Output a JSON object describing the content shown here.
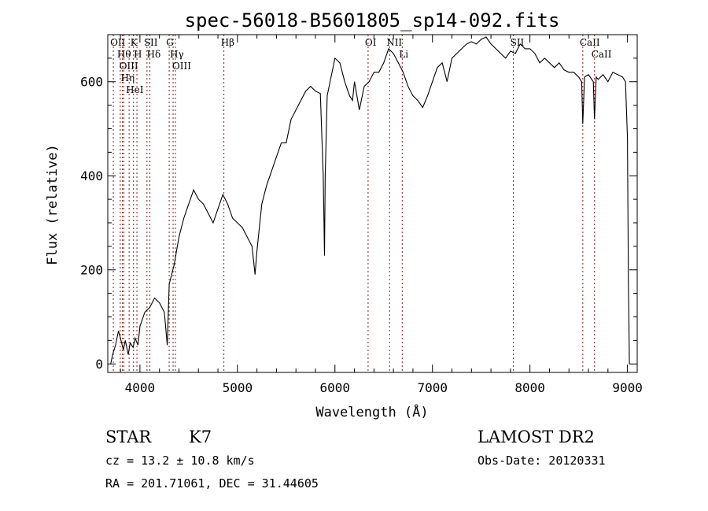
{
  "chart_data": {
    "type": "line",
    "title": "spec-56018-B5601805_sp14-092.fits",
    "xlabel": "Wavelength (Å)",
    "ylabel": "Flux (relative)",
    "xlim": [
      3670,
      9100
    ],
    "ylim": [
      -18,
      700
    ],
    "xticks": [
      4000,
      5000,
      6000,
      7000,
      8000,
      9000
    ],
    "yticks": [
      0,
      200,
      400,
      600
    ],
    "grid": false,
    "series": [
      {
        "name": "spectrum",
        "x": [
          3700,
          3720,
          3750,
          3780,
          3800,
          3830,
          3850,
          3880,
          3900,
          3930,
          3950,
          3980,
          4000,
          4050,
          4100,
          4150,
          4200,
          4250,
          4280,
          4300,
          4350,
          4400,
          4450,
          4500,
          4550,
          4600,
          4650,
          4700,
          4750,
          4800,
          4850,
          4900,
          4950,
          5000,
          5050,
          5100,
          5150,
          5180,
          5200,
          5250,
          5300,
          5350,
          5400,
          5450,
          5500,
          5550,
          5600,
          5650,
          5700,
          5750,
          5800,
          5850,
          5880,
          5893,
          5900,
          5920,
          5950,
          6000,
          6050,
          6100,
          6150,
          6180,
          6200,
          6250,
          6300,
          6350,
          6400,
          6450,
          6500,
          6550,
          6600,
          6650,
          6700,
          6750,
          6800,
          6850,
          6900,
          6950,
          7000,
          7050,
          7100,
          7150,
          7200,
          7250,
          7300,
          7350,
          7400,
          7450,
          7500,
          7550,
          7600,
          7650,
          7700,
          7750,
          7800,
          7850,
          7900,
          7950,
          8000,
          8050,
          8100,
          8150,
          8200,
          8250,
          8300,
          8350,
          8400,
          8450,
          8500,
          8530,
          8542,
          8560,
          8600,
          8650,
          8662,
          8680,
          8700,
          8750,
          8800,
          8850,
          8900,
          8950,
          8980,
          9000,
          9010,
          9020
        ],
        "y": [
          0,
          20,
          40,
          70,
          55,
          30,
          50,
          20,
          45,
          35,
          55,
          40,
          80,
          110,
          120,
          140,
          130,
          110,
          40,
          170,
          210,
          270,
          310,
          340,
          370,
          350,
          340,
          320,
          300,
          330,
          360,
          340,
          310,
          300,
          290,
          270,
          250,
          190,
          240,
          340,
          380,
          410,
          440,
          470,
          470,
          520,
          540,
          560,
          580,
          590,
          580,
          575,
          400,
          230,
          400,
          570,
          600,
          650,
          640,
          600,
          570,
          560,
          600,
          540,
          590,
          600,
          620,
          620,
          640,
          670,
          660,
          640,
          620,
          590,
          570,
          560,
          545,
          570,
          600,
          630,
          640,
          600,
          650,
          660,
          670,
          680,
          685,
          680,
          690,
          695,
          680,
          670,
          660,
          650,
          665,
          660,
          680,
          670,
          670,
          660,
          640,
          650,
          640,
          630,
          640,
          625,
          620,
          620,
          610,
          600,
          510,
          610,
          615,
          600,
          520,
          610,
          605,
          615,
          600,
          620,
          615,
          610,
          600,
          480,
          180,
          0
        ]
      }
    ],
    "line_markers": [
      {
        "label": "OII",
        "x": 3727
      },
      {
        "label": "Hθ",
        "x": 3798
      },
      {
        "label": "OIII",
        "x": 3820
      },
      {
        "label": "Hη",
        "x": 3835
      },
      {
        "label": "HeI",
        "x": 3889
      },
      {
        "label": "K",
        "x": 3934
      },
      {
        "label": "H",
        "x": 3969
      },
      {
        "label": "SII",
        "x": 4072
      },
      {
        "label": "Hδ",
        "x": 4102
      },
      {
        "label": "G",
        "x": 4300
      },
      {
        "label": "Hγ",
        "x": 4340
      },
      {
        "label": "OIII",
        "x": 4363
      },
      {
        "label": "Hβ",
        "x": 4861
      },
      {
        "label": "OI",
        "x": 6340
      },
      {
        "label": "NII",
        "x": 6560
      },
      {
        "label": "Li",
        "x": 6690
      },
      {
        "label": "SII",
        "x": 7830
      },
      {
        "label": "CaII",
        "x": 8542
      },
      {
        "label": "CaII",
        "x": 8662
      }
    ],
    "colors": {
      "spectrum": "#000000",
      "marker": "#8b1a1a"
    }
  },
  "info": {
    "class": "STAR",
    "subclass": "K7",
    "survey": "LAMOST DR2",
    "cz": "cz = 13.2 ± 10.8 km/s",
    "obs_date": "Obs-Date: 20120331",
    "coords": "RA = 201.71061, DEC =  31.44605"
  }
}
